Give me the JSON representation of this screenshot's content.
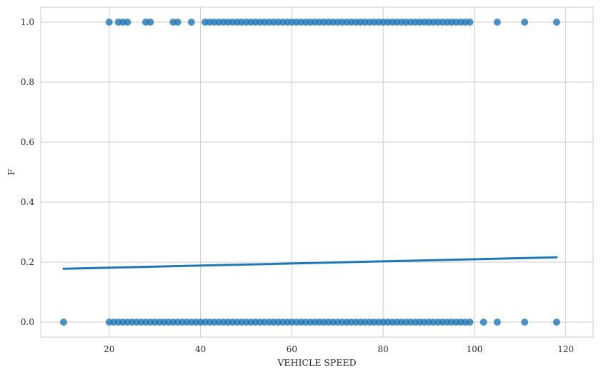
{
  "chart_data": {
    "type": "scatter",
    "title": "",
    "xlabel": "VEHICLE SPEED",
    "ylabel": "F",
    "xlim": [
      5,
      126
    ],
    "ylim": [
      -0.05,
      1.05
    ],
    "xticks": [
      20,
      40,
      60,
      80,
      100,
      120
    ],
    "yticks": [
      0.0,
      0.2,
      0.4,
      0.6,
      0.8,
      1.0
    ],
    "xtick_labels": [
      "20",
      "40",
      "60",
      "80",
      "100",
      "120"
    ],
    "ytick_labels": [
      "0.0",
      "0.2",
      "0.4",
      "0.6",
      "0.8",
      "1.0"
    ],
    "grid": true,
    "point_color": "#1f77b4",
    "line_color": "#1f77b4",
    "points_y1_x": [
      20,
      22,
      23,
      24,
      28,
      29,
      34,
      35,
      38,
      41,
      42,
      43,
      44,
      45,
      46,
      47,
      48,
      49,
      50,
      51,
      52,
      53,
      54,
      55,
      56,
      57,
      58,
      59,
      60,
      61,
      62,
      63,
      64,
      65,
      66,
      67,
      68,
      69,
      70,
      71,
      72,
      73,
      74,
      75,
      76,
      77,
      78,
      79,
      80,
      81,
      82,
      83,
      84,
      85,
      86,
      87,
      88,
      89,
      90,
      91,
      92,
      93,
      94,
      95,
      96,
      97,
      98,
      99,
      105,
      111,
      118
    ],
    "points_y0_x": [
      10,
      20,
      21,
      22,
      23,
      24,
      25,
      26,
      27,
      28,
      29,
      30,
      31,
      32,
      33,
      34,
      35,
      36,
      37,
      38,
      39,
      40,
      41,
      42,
      43,
      44,
      45,
      46,
      47,
      48,
      49,
      50,
      51,
      52,
      53,
      54,
      55,
      56,
      57,
      58,
      59,
      60,
      61,
      62,
      63,
      64,
      65,
      66,
      67,
      68,
      69,
      70,
      71,
      72,
      73,
      74,
      75,
      76,
      77,
      78,
      79,
      80,
      81,
      82,
      83,
      84,
      85,
      86,
      87,
      88,
      89,
      90,
      91,
      92,
      93,
      94,
      95,
      96,
      97,
      98,
      99,
      102,
      105,
      111,
      118
    ],
    "regression_line": {
      "x": [
        10,
        118
      ],
      "y": [
        0.178,
        0.216
      ]
    }
  }
}
